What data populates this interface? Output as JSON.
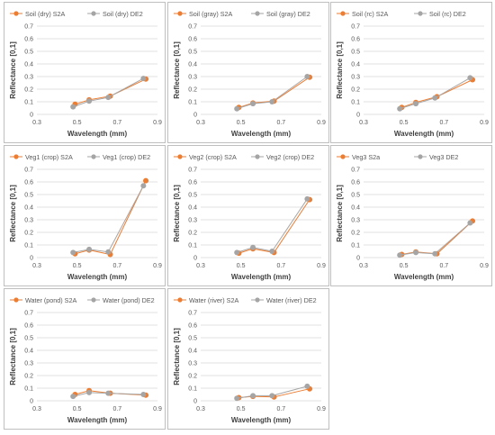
{
  "colors": {
    "s2a": "#ed7d31",
    "de2": "#a5a5a5",
    "grid": "#d9d9d9",
    "text": "#595959"
  },
  "chart_data": [
    {
      "type": "line",
      "xlabel": "Wavelength (mm)",
      "ylabel": "Reflectance [0,1]",
      "xlim": [
        0.3,
        0.9
      ],
      "ylim": [
        0,
        0.7
      ],
      "xticks": [
        "0.3",
        "0.5",
        "0.7",
        "0.9"
      ],
      "yticks": [
        "0",
        "0.1",
        "0.2",
        "0.3",
        "0.4",
        "0.5",
        "0.6",
        "0.7"
      ],
      "series": [
        {
          "name": "Soil (dry) S2A",
          "x": [
            0.49,
            0.56,
            0.665,
            0.842
          ],
          "y": [
            0.08,
            0.115,
            0.145,
            0.28
          ]
        },
        {
          "name": "Soil (dry) DE2",
          "x": [
            0.48,
            0.56,
            0.655,
            0.83
          ],
          "y": [
            0.06,
            0.105,
            0.135,
            0.285
          ]
        }
      ]
    },
    {
      "type": "line",
      "xlabel": "Wavelength (mm)",
      "ylabel": "Reflectance [0,1]",
      "xlim": [
        0.3,
        0.9
      ],
      "ylim": [
        0,
        0.7
      ],
      "xticks": [
        "0.3",
        "0.5",
        "0.7",
        "0.9"
      ],
      "yticks": [
        "0",
        "0.1",
        "0.2",
        "0.3",
        "0.4",
        "0.5",
        "0.6",
        "0.7"
      ],
      "series": [
        {
          "name": "Soil (gray) S2A",
          "x": [
            0.49,
            0.56,
            0.665,
            0.842
          ],
          "y": [
            0.055,
            0.09,
            0.105,
            0.295
          ]
        },
        {
          "name": "Soil (gray) DE2",
          "x": [
            0.48,
            0.56,
            0.655,
            0.83
          ],
          "y": [
            0.045,
            0.085,
            0.1,
            0.3
          ]
        }
      ]
    },
    {
      "type": "line",
      "xlabel": "Wavelength (mm)",
      "ylabel": "Reflectance [0,1]",
      "xlim": [
        0.3,
        0.9
      ],
      "ylim": [
        0,
        0.7
      ],
      "xticks": [
        "0.3",
        "0.5",
        "0.7",
        "0.9"
      ],
      "yticks": [
        "0",
        "0.1",
        "0.2",
        "0.3",
        "0.4",
        "0.5",
        "0.6",
        "0.7"
      ],
      "series": [
        {
          "name": "Soil (rc) S2A",
          "x": [
            0.49,
            0.56,
            0.665,
            0.842
          ],
          "y": [
            0.055,
            0.095,
            0.14,
            0.275
          ]
        },
        {
          "name": "Soil (rc) DE2",
          "x": [
            0.48,
            0.56,
            0.655,
            0.83
          ],
          "y": [
            0.045,
            0.085,
            0.13,
            0.29
          ]
        }
      ]
    },
    {
      "type": "line",
      "xlabel": "Wavelength (mm)",
      "ylabel": "Reflectance [0,1]",
      "xlim": [
        0.3,
        0.9
      ],
      "ylim": [
        0,
        0.7
      ],
      "xticks": [
        "0.3",
        "0.5",
        "0.7",
        "0.9"
      ],
      "yticks": [
        "0",
        "0.1",
        "0.2",
        "0.3",
        "0.4",
        "0.5",
        "0.6",
        "0.7"
      ],
      "series": [
        {
          "name": "Veg1 (crop) S2A",
          "x": [
            0.49,
            0.56,
            0.665,
            0.842
          ],
          "y": [
            0.03,
            0.06,
            0.025,
            0.61
          ]
        },
        {
          "name": "Veg1 (crop) DE2",
          "x": [
            0.48,
            0.56,
            0.655,
            0.83
          ],
          "y": [
            0.04,
            0.065,
            0.045,
            0.57
          ]
        }
      ]
    },
    {
      "type": "line",
      "xlabel": "Wavelength (mm)",
      "ylabel": "Reflectance [0,1]",
      "xlim": [
        0.3,
        0.9
      ],
      "ylim": [
        0,
        0.7
      ],
      "xticks": [
        "0.3",
        "0.5",
        "0.7",
        "0.9"
      ],
      "yticks": [
        "0",
        "0.1",
        "0.2",
        "0.3",
        "0.4",
        "0.5",
        "0.6",
        "0.7"
      ],
      "series": [
        {
          "name": "Veg2 (crop) S2A",
          "x": [
            0.49,
            0.56,
            0.665,
            0.842
          ],
          "y": [
            0.035,
            0.07,
            0.04,
            0.46
          ]
        },
        {
          "name": "Veg2 (crop) DE2",
          "x": [
            0.48,
            0.56,
            0.655,
            0.83
          ],
          "y": [
            0.04,
            0.08,
            0.05,
            0.465
          ]
        }
      ]
    },
    {
      "type": "line",
      "xlabel": "Wavelength (mm)",
      "ylabel": "Reflectance [0,1]",
      "xlim": [
        0.3,
        0.9
      ],
      "ylim": [
        0,
        0.7
      ],
      "xticks": [
        "0.3",
        "0.5",
        "0.7",
        "0.9"
      ],
      "yticks": [
        "0",
        "0.1",
        "0.2",
        "0.3",
        "0.4",
        "0.5",
        "0.6",
        "0.7"
      ],
      "series": [
        {
          "name": "Veg3 S2a",
          "x": [
            0.49,
            0.56,
            0.665,
            0.842
          ],
          "y": [
            0.025,
            0.045,
            0.03,
            0.29
          ]
        },
        {
          "name": "Veg3 DE2",
          "x": [
            0.48,
            0.56,
            0.655,
            0.83
          ],
          "y": [
            0.02,
            0.04,
            0.03,
            0.275
          ]
        }
      ]
    },
    {
      "type": "line",
      "xlabel": "Wavelength (mm)",
      "ylabel": "Reflectance [0,1]",
      "xlim": [
        0.3,
        0.9
      ],
      "ylim": [
        0,
        0.7
      ],
      "xticks": [
        "0.3",
        "0.5",
        "0.7",
        "0.9"
      ],
      "yticks": [
        "0",
        "0.1",
        "0.2",
        "0.3",
        "0.4",
        "0.5",
        "0.6",
        "0.7"
      ],
      "series": [
        {
          "name": "Water (pond) S2A",
          "x": [
            0.49,
            0.56,
            0.665,
            0.842
          ],
          "y": [
            0.05,
            0.08,
            0.06,
            0.045
          ]
        },
        {
          "name": "Water (pond) DE2",
          "x": [
            0.48,
            0.56,
            0.655,
            0.83
          ],
          "y": [
            0.035,
            0.065,
            0.06,
            0.05
          ]
        }
      ]
    },
    {
      "type": "line",
      "xlabel": "Wavelength (mm)",
      "ylabel": "Reflectance [0,1]",
      "xlim": [
        0.3,
        0.9
      ],
      "ylim": [
        0,
        0.7
      ],
      "xticks": [
        "0.3",
        "0.5",
        "0.7",
        "0.9"
      ],
      "yticks": [
        "0",
        "0.1",
        "0.2",
        "0.3",
        "0.4",
        "0.5",
        "0.6",
        "0.7"
      ],
      "series": [
        {
          "name": "Water (river) S2A",
          "x": [
            0.49,
            0.56,
            0.665,
            0.842
          ],
          "y": [
            0.025,
            0.035,
            0.03,
            0.095
          ]
        },
        {
          "name": "Water (river) DE2",
          "x": [
            0.48,
            0.56,
            0.655,
            0.83
          ],
          "y": [
            0.02,
            0.04,
            0.04,
            0.115
          ]
        }
      ]
    }
  ]
}
